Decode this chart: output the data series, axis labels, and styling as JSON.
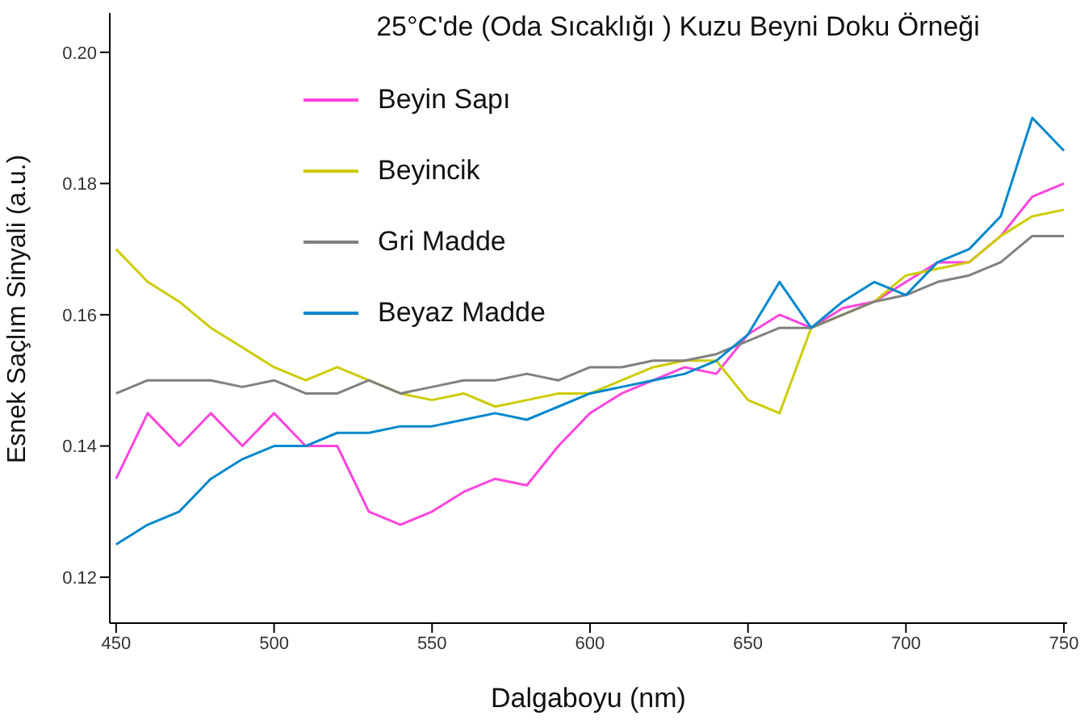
{
  "chart_data": {
    "type": "line",
    "title": "25°C'de (Oda Sıcaklığı ) Kuzu Beyni Doku Örneği",
    "xlabel": "Dalgaboyu (nm)",
    "ylabel": "Esnek Saçlım Sinyali (a.u.)",
    "x": [
      450,
      460,
      470,
      480,
      490,
      500,
      510,
      520,
      530,
      540,
      550,
      560,
      570,
      580,
      590,
      600,
      610,
      620,
      630,
      640,
      650,
      660,
      670,
      680,
      690,
      700,
      710,
      720,
      730,
      740,
      750
    ],
    "series": [
      {
        "name": "Beyin Sapı",
        "color": "#ff44dd",
        "values": [
          0.135,
          0.145,
          0.14,
          0.145,
          0.14,
          0.145,
          0.14,
          0.14,
          0.13,
          0.128,
          0.13,
          0.133,
          0.135,
          0.134,
          0.14,
          0.145,
          0.148,
          0.15,
          0.152,
          0.151,
          0.157,
          0.16,
          0.158,
          0.161,
          0.162,
          0.165,
          0.168,
          0.168,
          0.172,
          0.178,
          0.18
        ]
      },
      {
        "name": "Beyincik",
        "color": "#cccc00",
        "values": [
          0.17,
          0.165,
          0.162,
          0.158,
          0.155,
          0.152,
          0.15,
          0.152,
          0.15,
          0.148,
          0.147,
          0.148,
          0.146,
          0.147,
          0.148,
          0.148,
          0.15,
          0.152,
          0.153,
          0.153,
          0.147,
          0.145,
          0.158,
          0.16,
          0.162,
          0.166,
          0.167,
          0.168,
          0.172,
          0.175,
          0.176
        ]
      },
      {
        "name": "Gri Madde",
        "color": "#808080",
        "values": [
          0.148,
          0.15,
          0.15,
          0.15,
          0.149,
          0.15,
          0.148,
          0.148,
          0.15,
          0.148,
          0.149,
          0.15,
          0.15,
          0.151,
          0.15,
          0.152,
          0.152,
          0.153,
          0.153,
          0.154,
          0.156,
          0.158,
          0.158,
          0.16,
          0.162,
          0.163,
          0.165,
          0.166,
          0.168,
          0.172,
          0.172
        ]
      },
      {
        "name": "Beyaz Madde",
        "color": "#0088cc",
        "values": [
          0.125,
          0.128,
          0.13,
          0.135,
          0.138,
          0.14,
          0.14,
          0.142,
          0.142,
          0.143,
          0.143,
          0.144,
          0.145,
          0.144,
          0.146,
          0.148,
          0.149,
          0.15,
          0.151,
          0.153,
          0.157,
          0.165,
          0.158,
          0.162,
          0.165,
          0.163,
          0.168,
          0.17,
          0.175,
          0.19,
          0.185
        ]
      }
    ],
    "xlim": [
      448,
      751
    ],
    "xticks": [
      450,
      500,
      550,
      600,
      650,
      700,
      750
    ],
    "ylim": [
      0.113,
      0.206
    ],
    "yticks": [
      0.12,
      0.14,
      0.16,
      0.18,
      {
        "value": 0.2,
        "label": "0.20"
      }
    ],
    "grid": false,
    "legend": "top left",
    "marker": "none",
    "line_style": "solid"
  }
}
